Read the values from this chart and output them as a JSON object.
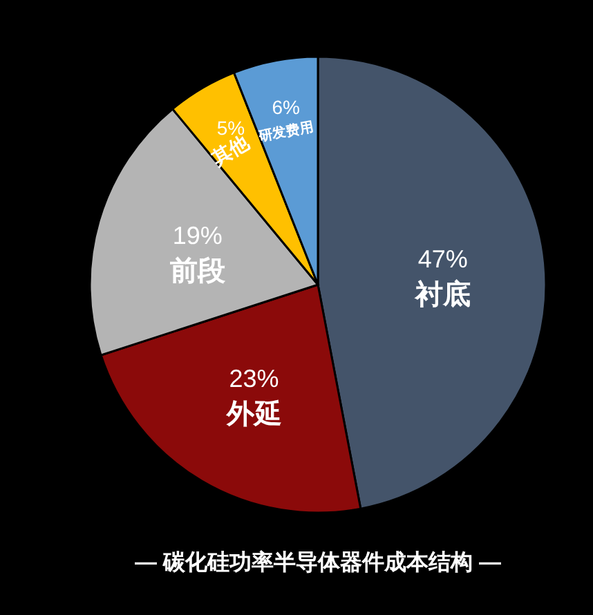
{
  "chart_data": {
    "type": "pie",
    "title": "— 碳化硅功率半导体器件成本结构 —",
    "categories": [
      "衬底",
      "外延",
      "前段",
      "其他",
      "研发费用"
    ],
    "values": [
      47,
      23,
      19,
      5,
      6
    ],
    "value_labels": [
      "47%",
      "23%",
      "19%",
      "5%",
      "6%"
    ],
    "colors": [
      "#44546a",
      "#8b0a0a",
      "#b4b4b4",
      "#ffc000",
      "#5b9bd5"
    ],
    "legend": false
  }
}
